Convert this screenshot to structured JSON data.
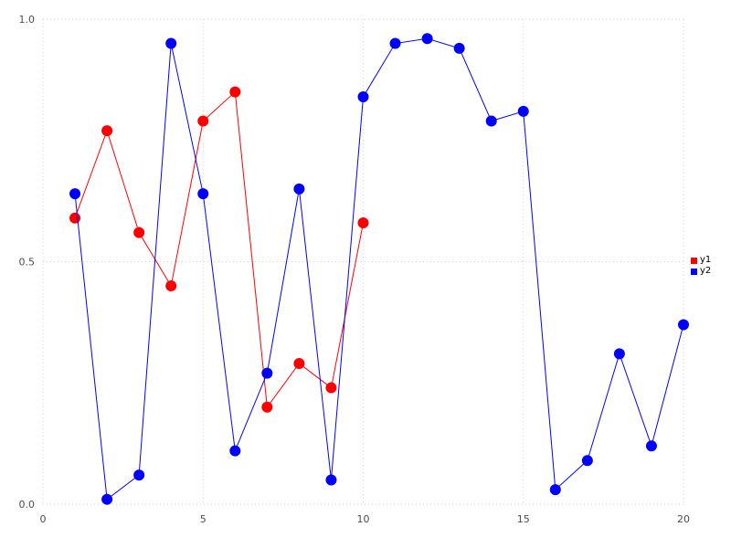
{
  "chart_data": {
    "type": "line",
    "title": "",
    "xlabel": "",
    "ylabel": "",
    "xlim": [
      0,
      20
    ],
    "ylim": [
      0,
      1
    ],
    "xticks": [
      0,
      5,
      10,
      15,
      20
    ],
    "xtick_labels": [
      "0",
      "5",
      "10",
      "15",
      "20"
    ],
    "yticks": [
      0,
      0.5,
      1.0
    ],
    "ytick_labels": [
      "0.0",
      "0.5",
      "1.0"
    ],
    "grid": "dotted",
    "legend_position": "right-outside",
    "series": [
      {
        "name": "y1",
        "color": "#ff0000",
        "marker": "filled-circle",
        "x": [
          1,
          2,
          3,
          4,
          5,
          6,
          7,
          8,
          9,
          10
        ],
        "values": [
          0.59,
          0.77,
          0.56,
          0.45,
          0.79,
          0.85,
          0.2,
          0.29,
          0.24,
          0.58
        ]
      },
      {
        "name": "y2",
        "color": "#0000ff",
        "marker": "filled-circle",
        "x": [
          1,
          2,
          3,
          4,
          5,
          6,
          7,
          8,
          9,
          10,
          11,
          12,
          13,
          14,
          15,
          16,
          17,
          18,
          19,
          20
        ],
        "values": [
          0.64,
          0.01,
          0.06,
          0.95,
          0.64,
          0.11,
          0.27,
          0.65,
          0.05,
          0.84,
          0.95,
          0.96,
          0.94,
          0.79,
          0.81,
          0.03,
          0.09,
          0.31,
          0.12,
          0.37
        ]
      }
    ]
  },
  "style": {
    "grid_color": "#d3d3d3",
    "tick_text_color": "#4d4d4d",
    "background": "#ffffff",
    "point_radius": 5.5,
    "line_width": 1
  }
}
